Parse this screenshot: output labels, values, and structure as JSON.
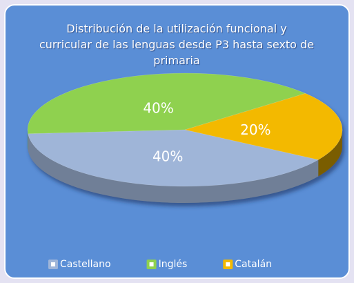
{
  "chart_data": {
    "type": "pie",
    "title": "Distribución de la utilización funcional y curricular de las lenguas desde P3 hasta sexto de primaria",
    "categories": [
      "Castellano",
      "Inglés",
      "Catalán"
    ],
    "values": [
      40,
      40,
      20
    ],
    "value_labels": [
      "40%",
      "40%",
      "20%"
    ],
    "colors": [
      "#9fb5d8",
      "#8fd14f",
      "#f3b900"
    ],
    "legend": "bottom"
  }
}
